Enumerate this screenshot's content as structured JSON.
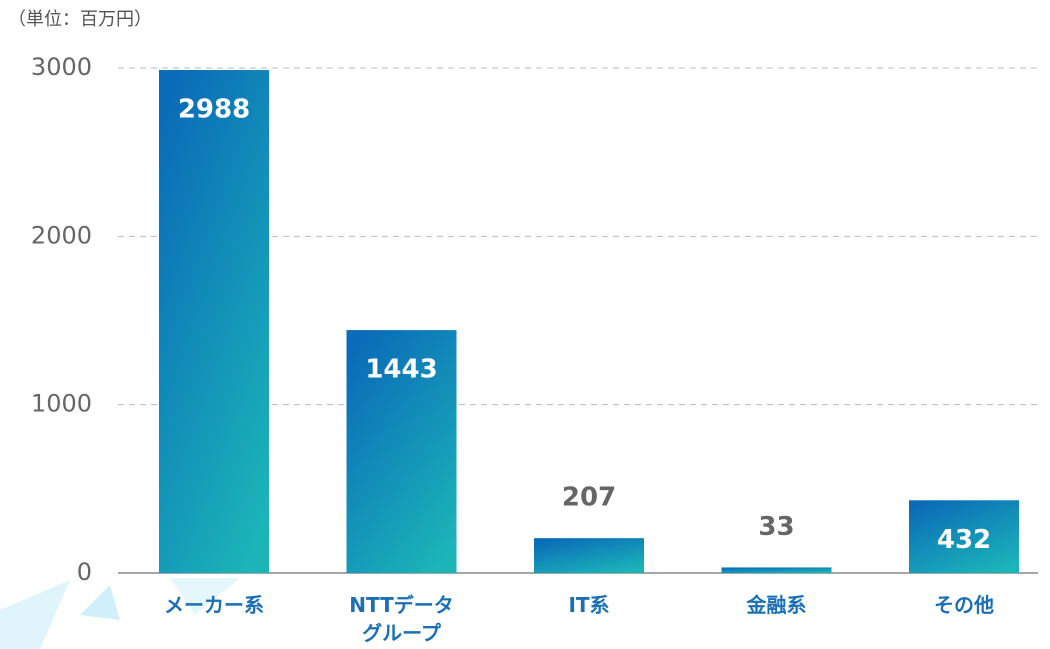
{
  "chart_data": {
    "type": "bar",
    "unit_label": "（単位：百万円）",
    "categories": [
      "メーカー系",
      "NTTデータ\nグループ",
      "IT系",
      "金融系",
      "その他"
    ],
    "values": [
      2988,
      1443,
      207,
      33,
      432
    ],
    "color": [
      "#0a6cb8",
      "#1bb5b8"
    ],
    "ylim": [
      0,
      3000
    ],
    "yticks": [
      0,
      1000,
      2000,
      3000
    ],
    "grid": true
  }
}
